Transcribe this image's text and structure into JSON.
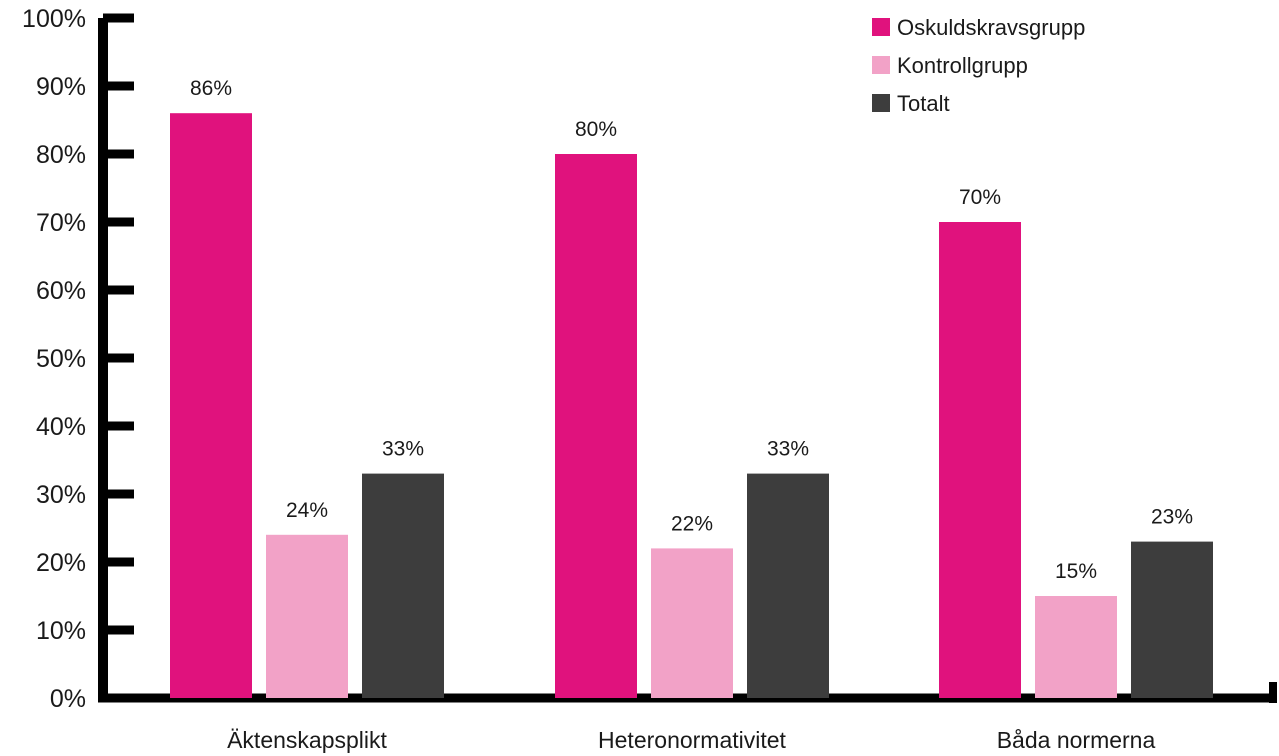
{
  "chart_data": {
    "type": "bar",
    "categories": [
      "Äktenskapsplikt",
      "Heteronormativitet",
      "Båda normerna"
    ],
    "series": [
      {
        "name": "Oskuldskravsgrupp",
        "values": [
          86,
          80,
          70
        ],
        "labels": [
          "86%",
          "80%",
          "70%"
        ],
        "color": "#e0127d"
      },
      {
        "name": "Kontrollgrupp",
        "values": [
          24,
          22,
          15
        ],
        "labels": [
          "24%",
          "22%",
          "15%"
        ],
        "color": "#f2a2c7"
      },
      {
        "name": "Totalt",
        "values": [
          33,
          33,
          23
        ],
        "labels": [
          "33%",
          "33%",
          "23%"
        ],
        "color": "#3d3d3d"
      }
    ],
    "yticks": [
      0,
      10,
      20,
      30,
      40,
      50,
      60,
      70,
      80,
      90,
      100
    ],
    "ytick_labels": [
      "0%",
      "10%",
      "20%",
      "30%",
      "40%",
      "50%",
      "60%",
      "70%",
      "80%",
      "90%",
      "100%"
    ],
    "ylim": [
      0,
      100
    ],
    "title": "",
    "xlabel": "",
    "ylabel": "",
    "grid": false,
    "legend_position": "top-right",
    "axis_color": "#000000"
  }
}
